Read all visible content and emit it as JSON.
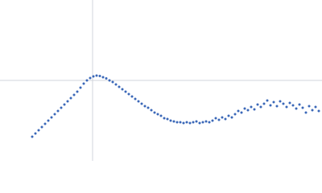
{
  "chart_data": {
    "type": "scatter",
    "x": [
      40,
      44,
      48,
      52,
      56,
      60,
      64,
      68,
      72,
      76,
      80,
      84,
      88,
      92,
      96,
      100,
      104,
      108,
      112,
      116,
      120,
      124,
      128,
      132,
      136,
      140,
      144,
      148,
      152,
      156,
      160,
      164,
      168,
      172,
      176,
      180,
      184,
      188,
      192,
      196,
      200,
      204,
      208,
      212,
      216,
      220,
      224,
      228,
      232,
      236,
      240,
      244,
      248,
      252,
      256,
      260,
      264,
      268,
      272,
      276,
      280,
      284,
      288,
      292,
      296,
      300,
      304,
      308,
      312,
      316,
      320,
      324,
      328,
      332,
      336,
      340,
      344,
      348,
      352,
      356,
      360,
      364,
      368,
      372,
      376,
      380,
      384,
      388,
      392,
      396
    ],
    "series": [
      {
        "color": "#3b68b8",
        "values": [
          30,
          34,
          38,
          42,
          46,
          50,
          54,
          58,
          62,
          66,
          70,
          74,
          78,
          82,
          86,
          91,
          96,
          100,
          103,
          105,
          106,
          105.5,
          104,
          102.5,
          100,
          98,
          95,
          92,
          89,
          86,
          83,
          80,
          77,
          74,
          71,
          68,
          66,
          63,
          60,
          58,
          56,
          53,
          52,
          50,
          49,
          48,
          48,
          47,
          48,
          47,
          48,
          49,
          47,
          48,
          49,
          48,
          50,
          53,
          51,
          54,
          52,
          56,
          54,
          58,
          62,
          60,
          65,
          63,
          67,
          64,
          70,
          67,
          71,
          75,
          69,
          73,
          68,
          74,
          71,
          67,
          72,
          69,
          65,
          70,
          66,
          60,
          68,
          63,
          67,
          62
        ]
      }
    ],
    "xlim": [
      0,
      400
    ],
    "ylim": [
      0,
      200
    ],
    "crosshair": {
      "x": 115,
      "y": 100
    }
  }
}
